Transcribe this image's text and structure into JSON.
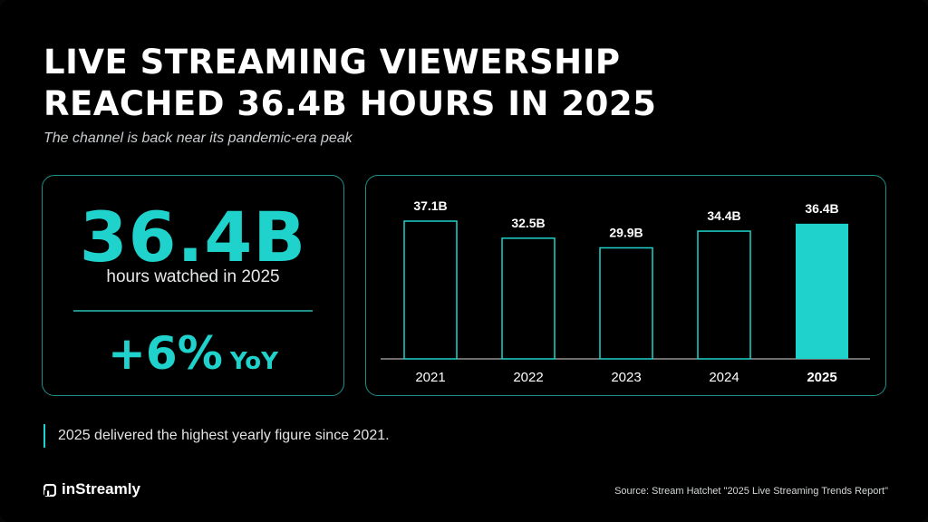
{
  "title": {
    "line1": "LIVE STREAMING VIEWERSHIP",
    "line2": "REACHED 36.4B HOURS IN 2025"
  },
  "subtitle": "The channel is back near its pandemic-era peak",
  "kpi": {
    "value": "36.4B",
    "label": "hours watched in 2025",
    "change": "+6%",
    "change_suffix": "YoY"
  },
  "note": "2025 delivered the highest yearly figure since 2021.",
  "brand": "inStreamly",
  "source": "Source: Stream Hatchet \"2025 Live Streaming Trends Report\"",
  "colors": {
    "accent": "#1fd3cc",
    "border": "#1f8f88",
    "background": "#000000"
  },
  "chart_data": {
    "type": "bar",
    "categories": [
      "2021",
      "2022",
      "2023",
      "2024",
      "2025"
    ],
    "values": [
      37.1,
      32.5,
      29.9,
      34.4,
      36.4
    ],
    "value_labels": [
      "37.1B",
      "32.5B",
      "29.9B",
      "34.4B",
      "36.4B"
    ],
    "highlight": "2025",
    "unit": "B hours",
    "ylim": [
      0,
      37.1
    ],
    "grid": false
  }
}
